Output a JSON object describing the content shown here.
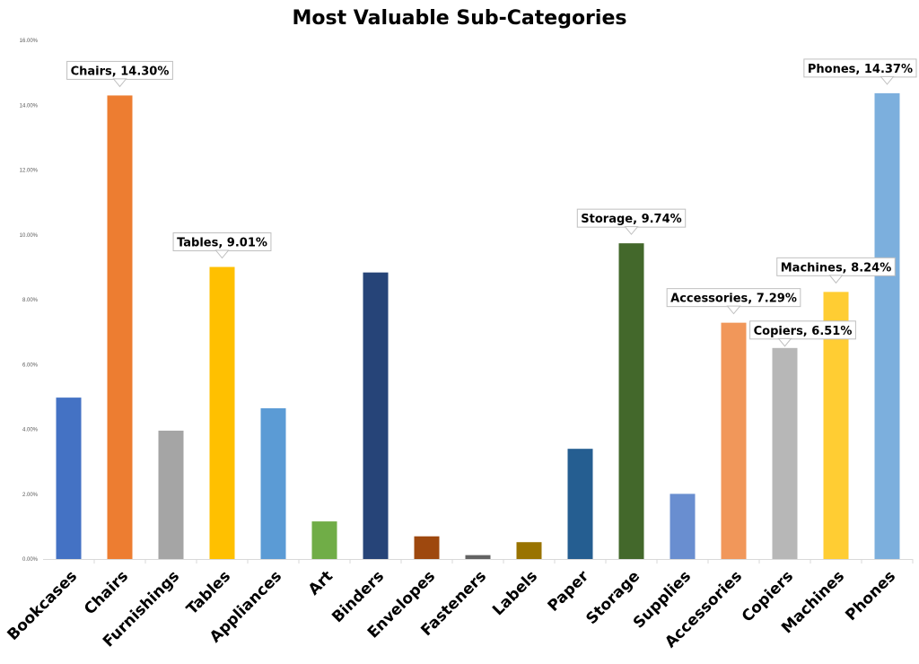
{
  "chart_data": {
    "type": "bar",
    "title": "Most Valuable Sub-Categories",
    "xlabel": "",
    "ylabel": "",
    "ylim": [
      0,
      16
    ],
    "y_ticks": [
      "0.00%",
      "2.00%",
      "4.00%",
      "6.00%",
      "8.00%",
      "10.00%",
      "12.00%",
      "14.00%",
      "16.00%"
    ],
    "grid": false,
    "categories": [
      "Bookcases",
      "Chairs",
      "Furnishings",
      "Tables",
      "Appliances",
      "Art",
      "Binders",
      "Envelopes",
      "Fasteners",
      "Labels",
      "Paper",
      "Storage",
      "Supplies",
      "Accessories",
      "Copiers",
      "Machines",
      "Phones"
    ],
    "values": [
      4.98,
      14.3,
      3.96,
      9.01,
      4.65,
      1.16,
      8.84,
      0.7,
      0.12,
      0.52,
      3.4,
      9.74,
      2.01,
      7.29,
      6.51,
      8.24,
      14.37
    ],
    "colors": [
      "#4472C4",
      "#ED7D31",
      "#A5A5A5",
      "#FFC000",
      "#5B9BD5",
      "#70AD47",
      "#264478",
      "#9E480E",
      "#636363",
      "#997300",
      "#255E91",
      "#43682B",
      "#698ED0",
      "#F1975A",
      "#B7B7B7",
      "#FFCD33",
      "#7CAFDD"
    ],
    "data_labels": [
      {
        "index": 1,
        "text": "Chairs, 14.30%"
      },
      {
        "index": 3,
        "text": "Tables, 9.01%"
      },
      {
        "index": 11,
        "text": "Storage, 9.74%"
      },
      {
        "index": 13,
        "text": "Accessories, 7.29%"
      },
      {
        "index": 14,
        "text": "Copiers, 6.51%"
      },
      {
        "index": 15,
        "text": "Machines, 8.24%"
      },
      {
        "index": 16,
        "text": "Phones, 14.37%"
      }
    ]
  }
}
